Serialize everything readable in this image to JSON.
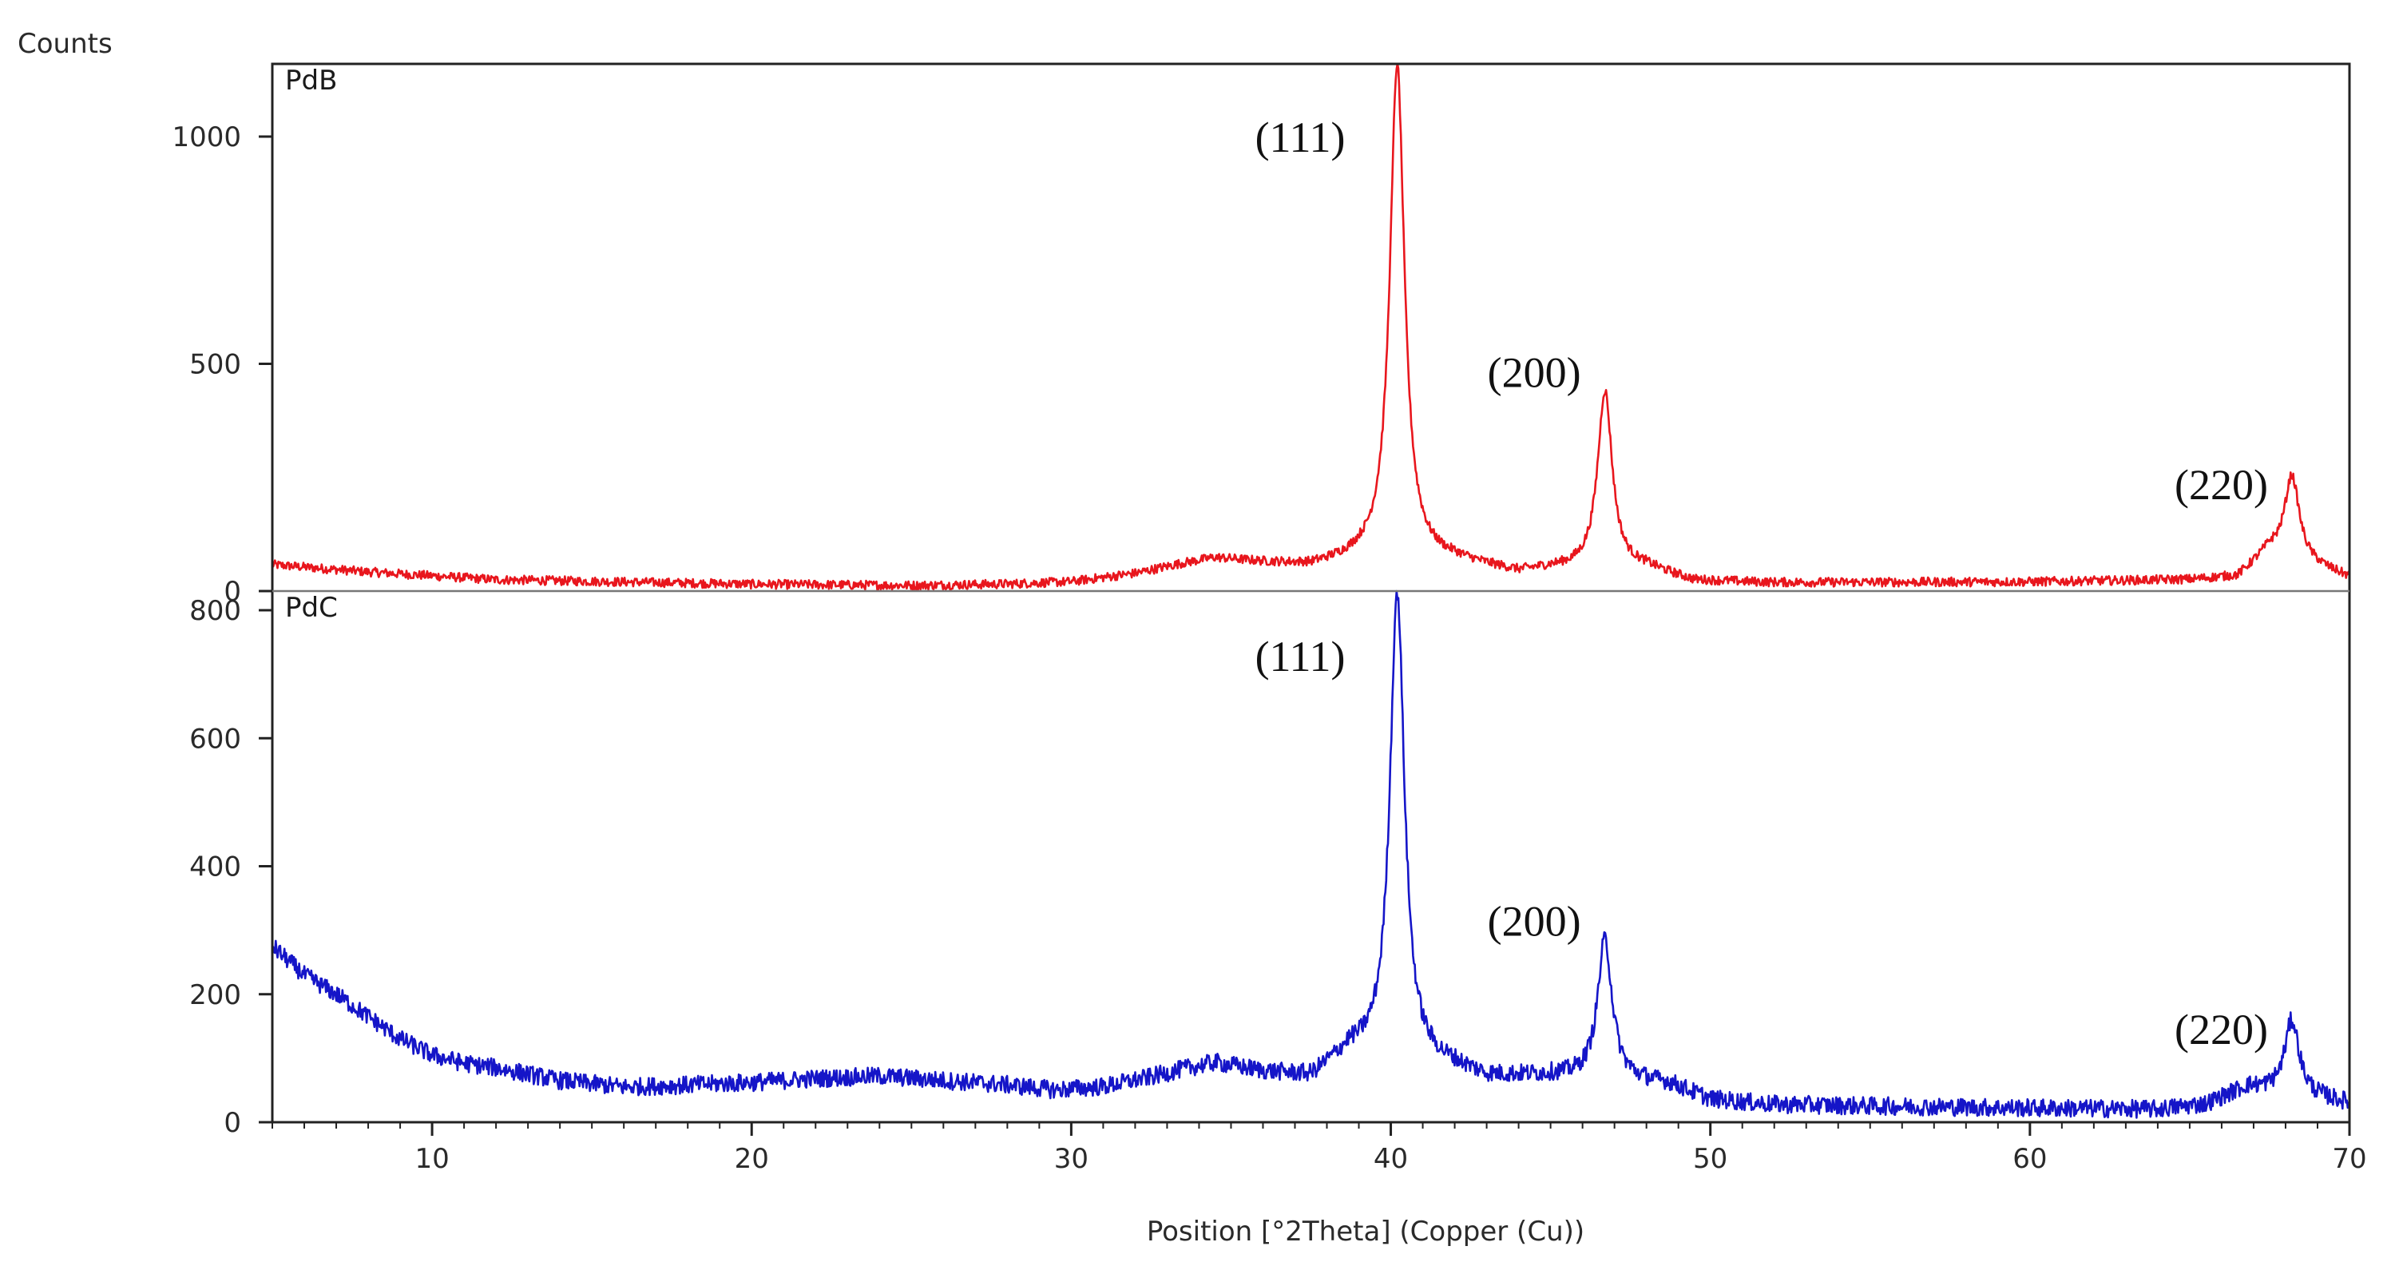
{
  "chart_data": {
    "type": "line",
    "title": "",
    "ylabel": "Counts",
    "xlabel": "Position [°2Theta] (Copper (Cu))",
    "xlim": [
      5,
      70
    ],
    "xticks": [
      "10",
      "20",
      "30",
      "40",
      "50",
      "60",
      "70"
    ],
    "panels": [
      {
        "name": "PdB",
        "color": "#e8161d",
        "ylim": [
          0,
          1160
        ],
        "yticks": [
          "0",
          "500",
          "1000"
        ],
        "baseline": [
          [
            5,
            58
          ],
          [
            8,
            42
          ],
          [
            12,
            25
          ],
          [
            20,
            15
          ],
          [
            25,
            12
          ],
          [
            28,
            15
          ],
          [
            30,
            20
          ],
          [
            32,
            38
          ],
          [
            33.5,
            60
          ],
          [
            34.5,
            72
          ],
          [
            36,
            62
          ],
          [
            37.5,
            55
          ],
          [
            39,
            70
          ],
          [
            42,
            65
          ],
          [
            44,
            40
          ],
          [
            45,
            48
          ],
          [
            48,
            50
          ],
          [
            49.5,
            22
          ],
          [
            52,
            18
          ],
          [
            60,
            20
          ],
          [
            65,
            25
          ],
          [
            66.5,
            32
          ],
          [
            67.5,
            90
          ],
          [
            70,
            30
          ]
        ],
        "peaks": [
          {
            "label": "(111)",
            "position": 40.2,
            "counts": 1160
          },
          {
            "label": "(200)",
            "position": 46.7,
            "counts": 440
          },
          {
            "label": "(220)",
            "position": 68.2,
            "counts": 255
          }
        ]
      },
      {
        "name": "PdC",
        "color": "#1515c8",
        "ylim": [
          0,
          830
        ],
        "yticks": [
          "0",
          "200",
          "400",
          "600",
          "800"
        ],
        "baseline": [
          [
            5,
            275
          ],
          [
            6,
            230
          ],
          [
            7,
            200
          ],
          [
            8,
            165
          ],
          [
            9,
            130
          ],
          [
            10,
            105
          ],
          [
            11,
            92
          ],
          [
            12,
            85
          ],
          [
            14,
            65
          ],
          [
            16,
            55
          ],
          [
            18,
            58
          ],
          [
            20,
            62
          ],
          [
            22,
            68
          ],
          [
            24,
            72
          ],
          [
            26,
            65
          ],
          [
            28,
            58
          ],
          [
            29.5,
            50
          ],
          [
            31,
            55
          ],
          [
            32.5,
            70
          ],
          [
            33.5,
            82
          ],
          [
            34.5,
            92
          ],
          [
            36,
            78
          ],
          [
            37.5,
            70
          ],
          [
            38.7,
            110
          ],
          [
            42,
            85
          ],
          [
            43,
            70
          ],
          [
            45,
            72
          ],
          [
            48.7,
            60
          ],
          [
            50,
            35
          ],
          [
            52,
            27
          ],
          [
            55,
            25
          ],
          [
            60,
            22
          ],
          [
            64,
            20
          ],
          [
            65.5,
            28
          ],
          [
            66.8,
            55
          ],
          [
            70,
            30
          ]
        ],
        "peaks": [
          {
            "label": "(111)",
            "position": 40.2,
            "counts": 830
          },
          {
            "label": "(200)",
            "position": 46.7,
            "counts": 285
          },
          {
            "label": "(220)",
            "position": 68.2,
            "counts": 160
          }
        ]
      }
    ]
  }
}
